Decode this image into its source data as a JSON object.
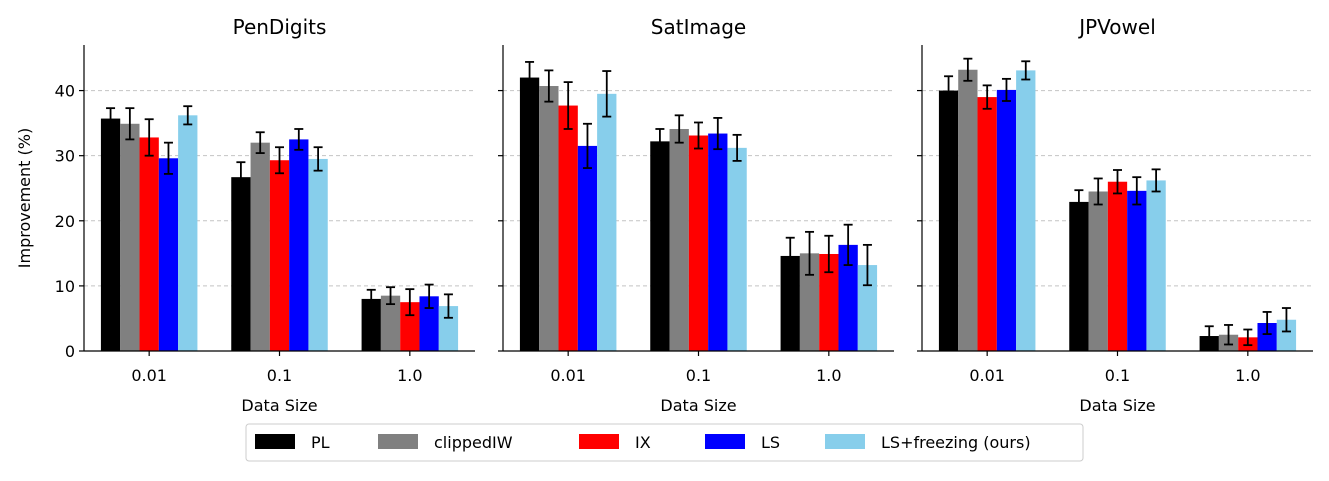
{
  "chart_data": {
    "type": "bar",
    "ylabel": "Improvement (%)",
    "xlabel": "Data Size",
    "ylim": [
      0,
      47
    ],
    "yticks": [
      0,
      10,
      20,
      30,
      40
    ],
    "yticks_labels": [
      "0",
      "10",
      "20",
      "30",
      "40"
    ],
    "grid": "horizontal-dashed",
    "legend_position": "bottom-center",
    "categories": [
      "0.01",
      "0.1",
      "1.0"
    ],
    "series": [
      {
        "name": "PL",
        "color": "#000000"
      },
      {
        "name": "clippedIW",
        "color": "#808080"
      },
      {
        "name": "IX",
        "color": "#ff0000"
      },
      {
        "name": "LS",
        "color": "#0000ff"
      },
      {
        "name": "LS+freezing (ours)",
        "color": "#87ceeb"
      }
    ],
    "panels": [
      {
        "title": "PenDigits",
        "values": [
          [
            35.7,
            34.9,
            32.8,
            29.6,
            36.2
          ],
          [
            26.7,
            32.0,
            29.3,
            32.5,
            29.5
          ],
          [
            8.0,
            8.5,
            7.5,
            8.4,
            6.9
          ]
        ],
        "errors": [
          [
            1.6,
            2.4,
            2.8,
            2.4,
            1.4
          ],
          [
            2.3,
            1.6,
            2.0,
            1.6,
            1.8
          ],
          [
            1.4,
            1.3,
            2.0,
            1.8,
            1.8
          ]
        ]
      },
      {
        "title": "SatImage",
        "values": [
          [
            42.0,
            40.7,
            37.7,
            31.5,
            39.5
          ],
          [
            32.2,
            34.1,
            33.1,
            33.4,
            31.2
          ],
          [
            14.6,
            15.0,
            14.9,
            16.3,
            13.2
          ]
        ],
        "errors": [
          [
            2.4,
            2.4,
            3.6,
            3.4,
            3.5
          ],
          [
            1.9,
            2.1,
            2.0,
            2.4,
            2.0
          ],
          [
            2.8,
            3.3,
            2.8,
            3.1,
            3.1
          ]
        ]
      },
      {
        "title": "JPVowel",
        "values": [
          [
            40.0,
            43.2,
            39.0,
            40.1,
            43.1
          ],
          [
            22.9,
            24.5,
            26.0,
            24.6,
            26.2
          ],
          [
            2.3,
            2.5,
            2.1,
            4.3,
            4.8
          ]
        ],
        "errors": [
          [
            2.2,
            1.7,
            1.8,
            1.7,
            1.4
          ],
          [
            1.8,
            2.0,
            1.8,
            2.1,
            1.7
          ],
          [
            1.5,
            1.5,
            1.2,
            1.7,
            1.8
          ]
        ]
      }
    ]
  }
}
